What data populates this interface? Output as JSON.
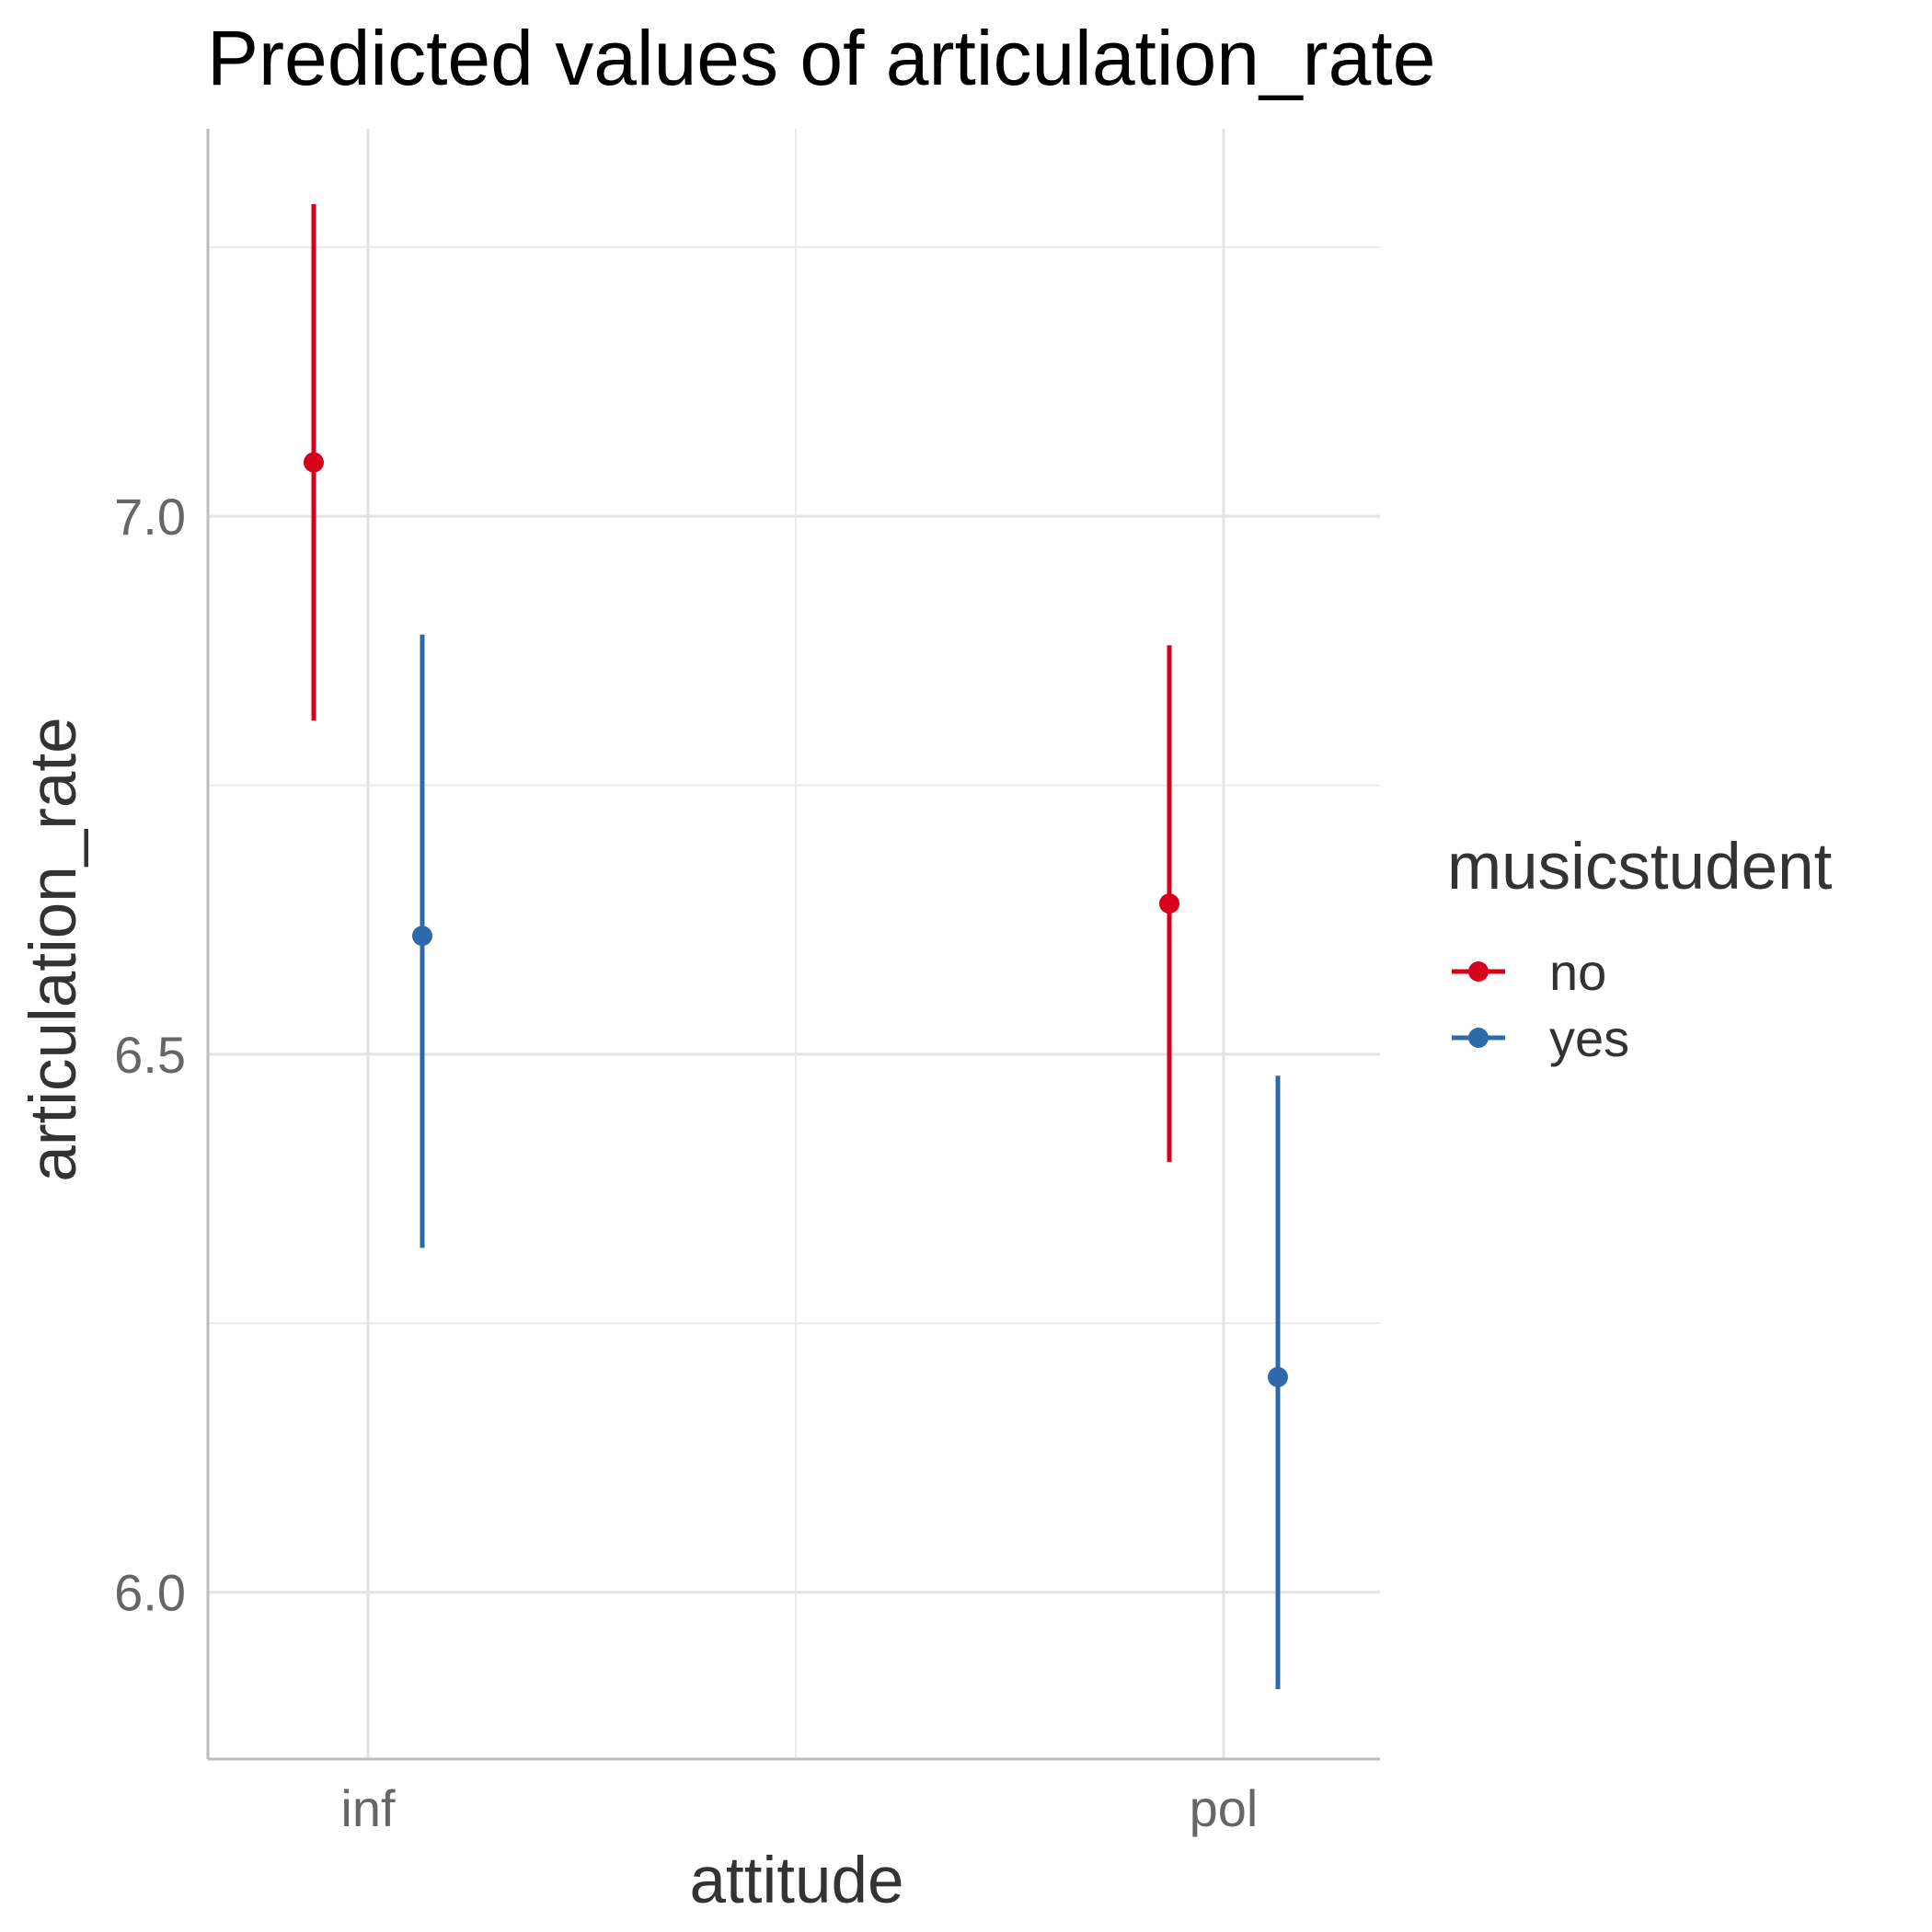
{
  "chart_data": {
    "type": "scatter",
    "title": "Predicted values of articulation_rate",
    "xlabel": "attitude",
    "ylabel": "articulation_rate",
    "categories": [
      "inf",
      "pol"
    ],
    "ylim": [
      5.845,
      7.36
    ],
    "yticks": [
      6.0,
      6.5,
      7.0
    ],
    "ytick_labels": [
      "6.0",
      "6.5",
      "7.0"
    ],
    "grid": true,
    "legend": {
      "title": "musicstudent",
      "position": "right"
    },
    "series": [
      {
        "name": "no",
        "color": "#D7001C",
        "values": [
          7.05,
          6.64
        ],
        "lower": [
          6.81,
          6.4
        ],
        "upper": [
          7.29,
          6.88
        ]
      },
      {
        "name": "yes",
        "color": "#2E69AA",
        "values": [
          6.61,
          6.2
        ],
        "lower": [
          6.32,
          5.91
        ],
        "upper": [
          6.89,
          6.48
        ]
      }
    ]
  }
}
